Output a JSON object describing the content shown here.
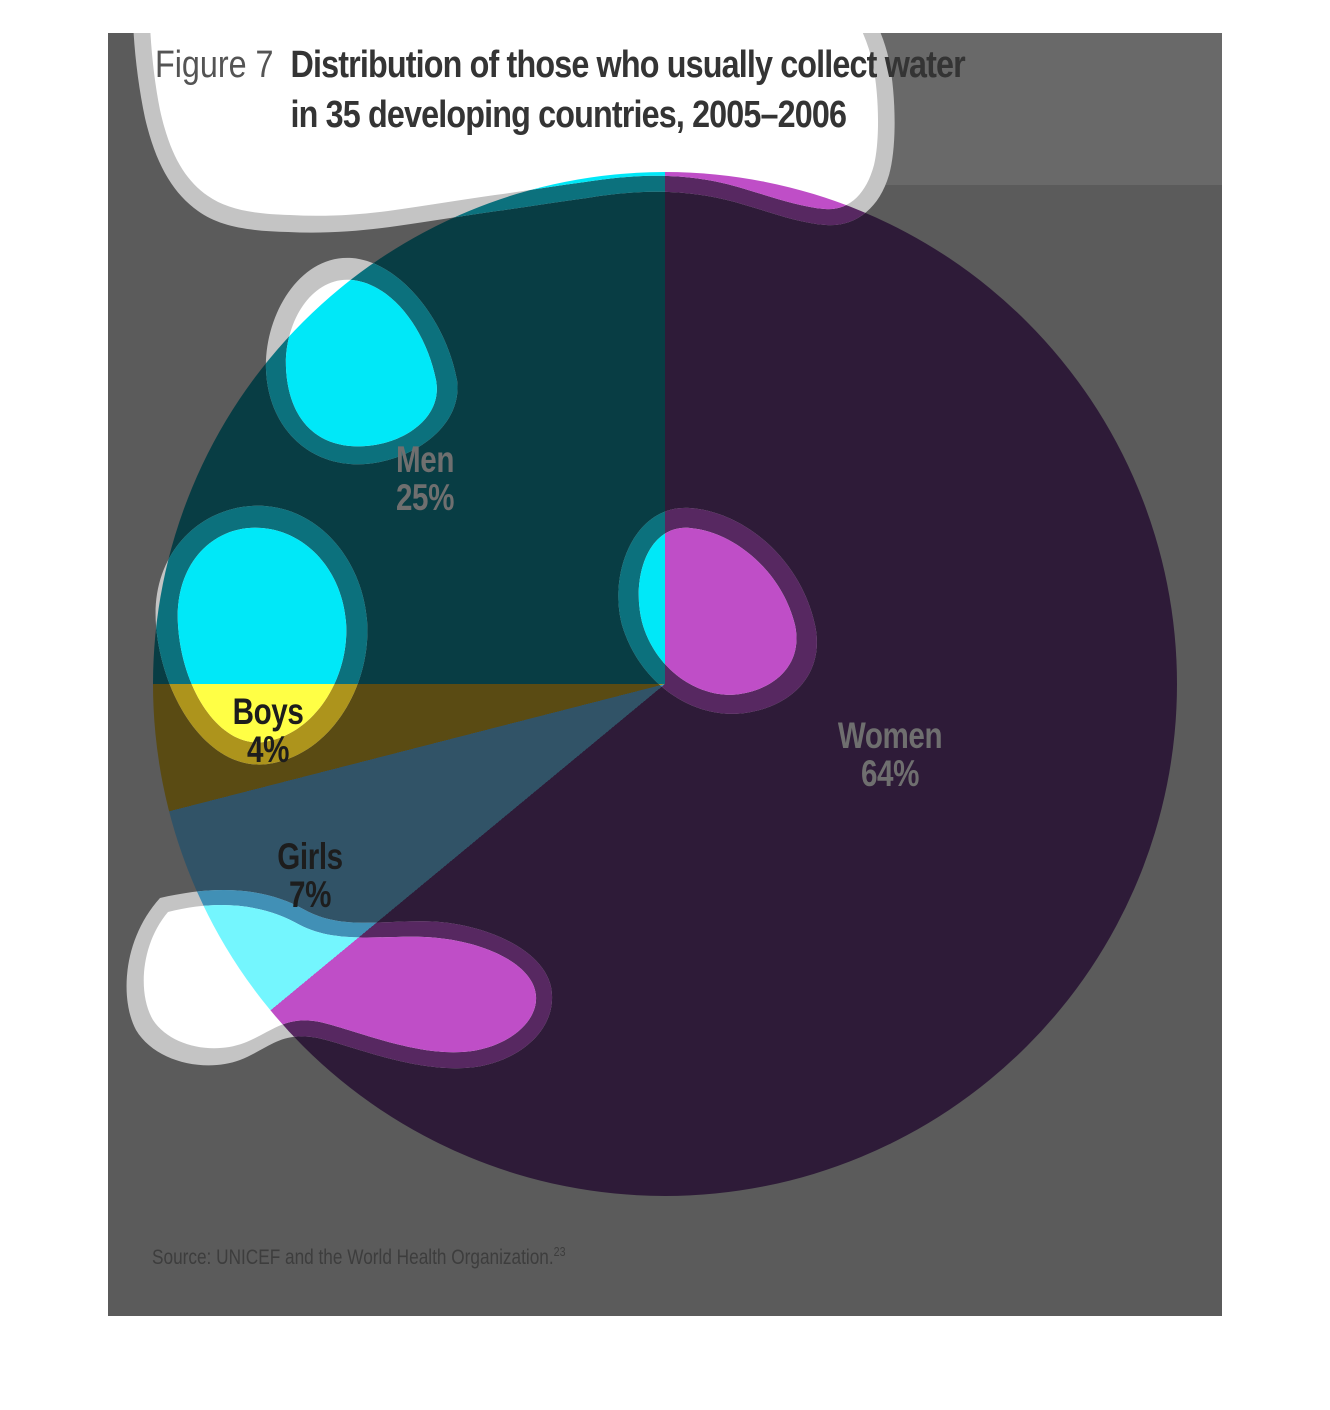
{
  "page": {
    "background": "#ffffff",
    "panel_color": "#5b5b5b"
  },
  "figure": {
    "label": "Figure 7",
    "title_line1": "Distribution of those who usually collect water",
    "title_line2": "in 35 developing countries, 2005–2006"
  },
  "slices": {
    "women": {
      "name": "Women",
      "pct_label": "64%"
    },
    "men": {
      "name": "Men",
      "pct_label": "25%"
    },
    "girls": {
      "name": "Girls",
      "pct_label": "7%"
    },
    "boys": {
      "name": "Boys",
      "pct_label": "4%"
    }
  },
  "source": {
    "text": "Source: UNICEF and the World Health Organization.",
    "footnote_ref": "23"
  },
  "decor": {
    "bubble_rim_color": "#c4c4c4",
    "bubble_core_color": "#ffffff"
  },
  "chart_data": {
    "type": "pie",
    "figure_label": "Figure 7",
    "title": "Distribution of those who usually collect water in 35 developing countries, 2005–2006",
    "start_angle_deg": 0,
    "direction": "clockwise",
    "legend": false,
    "labels_on_chart": true,
    "segments": [
      {
        "label": "Women",
        "value_pct": 64,
        "color_dark": "#2e1b38",
        "color_rim": "#572861",
        "color_bright": "#bf4ec7"
      },
      {
        "label": "Girls",
        "value_pct": 7,
        "color_dark": "#315367",
        "color_rim": "#4190b6",
        "color_bright": "#74f6fe"
      },
      {
        "label": "Boys",
        "value_pct": 4,
        "color_dark": "#5a4b13",
        "color_rim": "#ad941c",
        "color_bright": "#ffff45"
      },
      {
        "label": "Men",
        "value_pct": 25,
        "color_dark": "#083d44",
        "color_rim": "#0c717d",
        "color_bright": "#00e8f8"
      }
    ],
    "source": "UNICEF and the World Health Organization"
  }
}
